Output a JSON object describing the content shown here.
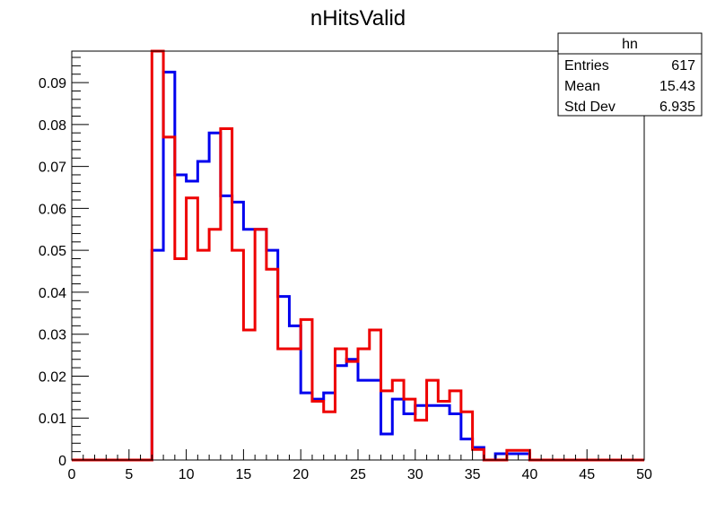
{
  "chart_data": {
    "type": "histogram",
    "title": "nHitsValid",
    "xlim": [
      0,
      50
    ],
    "ylim": [
      0,
      0.0975
    ],
    "bin_width": 1,
    "x_ticks": [
      "0",
      "5",
      "10",
      "15",
      "20",
      "25",
      "30",
      "35",
      "40",
      "45",
      "50"
    ],
    "x_tick_values": [
      0,
      5,
      10,
      15,
      20,
      25,
      30,
      35,
      40,
      45,
      50
    ],
    "y_ticks": [
      "0",
      "0.01",
      "0.02",
      "0.03",
      "0.04",
      "0.05",
      "0.06",
      "0.07",
      "0.08",
      "0.09"
    ],
    "y_tick_values": [
      0,
      0.01,
      0.02,
      0.03,
      0.04,
      0.05,
      0.06,
      0.07,
      0.08,
      0.09
    ],
    "series": [
      {
        "color": "#0000ee",
        "values": [
          0,
          0,
          0,
          0,
          0,
          0,
          0,
          0.05,
          0.0925,
          0.068,
          0.0665,
          0.0712,
          0.078,
          0.063,
          0.0615,
          0.055,
          0.055,
          0.05,
          0.039,
          0.032,
          0.016,
          0.0145,
          0.016,
          0.0225,
          0.024,
          0.019,
          0.019,
          0.0062,
          0.0145,
          0.011,
          0.013,
          0.013,
          0.013,
          0.011,
          0.005,
          0.003,
          0,
          0.0015,
          0.0015,
          0.0015,
          0,
          0,
          0,
          0,
          0,
          0,
          0,
          0,
          0,
          0
        ]
      },
      {
        "color": "#ee0000",
        "values": [
          0,
          0,
          0,
          0,
          0,
          0,
          0,
          0.0975,
          0.077,
          0.048,
          0.0625,
          0.05,
          0.055,
          0.079,
          0.05,
          0.031,
          0.055,
          0.0455,
          0.0265,
          0.0265,
          0.0335,
          0.014,
          0.0115,
          0.0265,
          0.0235,
          0.0265,
          0.031,
          0.0165,
          0.019,
          0.0145,
          0.0095,
          0.019,
          0.014,
          0.0165,
          0.0115,
          0.0025,
          0,
          0,
          0.0023,
          0.0023,
          0,
          0,
          0,
          0,
          0,
          0,
          0,
          0,
          0,
          0
        ]
      }
    ],
    "stats_box": {
      "name": "hn",
      "rows": [
        {
          "label": "Entries",
          "value": "617"
        },
        {
          "label": "Mean",
          "value": "15.43"
        },
        {
          "label": "Std Dev",
          "value": "6.935"
        }
      ]
    }
  }
}
